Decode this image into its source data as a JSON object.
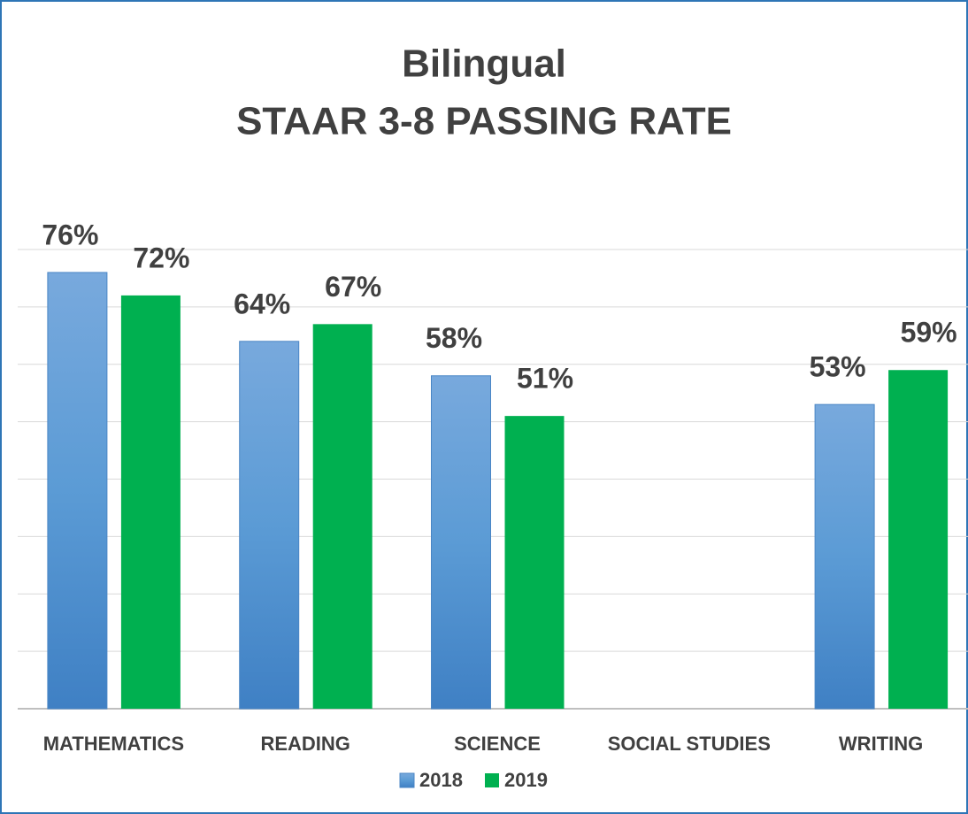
{
  "chart_data": {
    "type": "bar",
    "title": "Bilingual",
    "subtitle": "STAAR 3-8 PASSING RATE",
    "categories": [
      "MATHEMATICS",
      "READING",
      "SCIENCE",
      "SOCIAL STUDIES",
      "WRITING"
    ],
    "series": [
      {
        "name": "2018",
        "color": "#5b9bd5",
        "values": [
          76,
          64,
          58,
          null,
          53
        ],
        "value_labels": [
          "76%",
          "64%",
          "58%",
          null,
          "53%"
        ]
      },
      {
        "name": "2019",
        "color": "#00b050",
        "values": [
          72,
          67,
          51,
          null,
          59
        ],
        "value_labels": [
          "72%",
          "67%",
          "51%",
          null,
          "59%"
        ]
      }
    ],
    "ylim": [
      0,
      80
    ],
    "yticks": [
      0,
      10,
      20,
      30,
      40,
      50,
      60,
      70,
      80
    ],
    "grid": true,
    "legend": "bottom"
  }
}
